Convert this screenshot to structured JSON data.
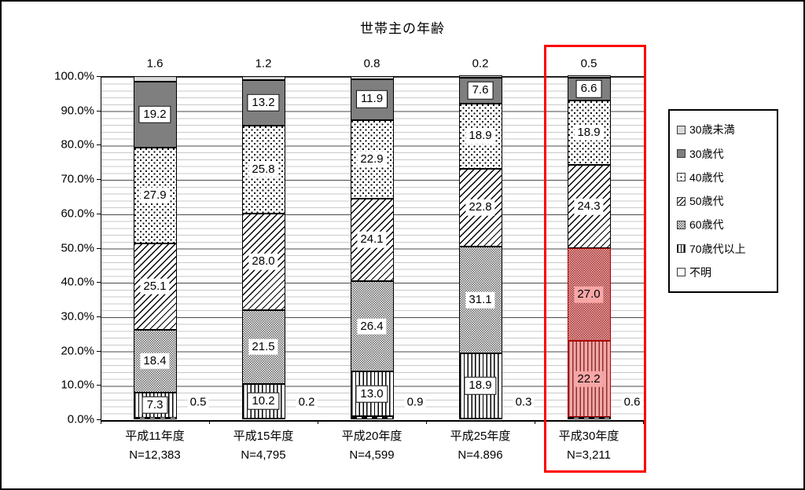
{
  "title": "世帯主の年齢",
  "colors": {
    "highlight_border": "#ff0000",
    "highlight_pattern": "#9c3535",
    "highlight_fill": "#f5b0b0",
    "highlight_label_fill": "#f8a6a6",
    "series_30s_fill": "#7f7f7f",
    "series_under30_fill": "#d9d9d9",
    "gridline_major": "#4a4a4a",
    "gridline_minor": "#c9c9c9"
  },
  "legend": {
    "items": [
      {
        "label": "30歳未満"
      },
      {
        "label": "30歳代"
      },
      {
        "label": "40歳代"
      },
      {
        "label": "50歳代"
      },
      {
        "label": "60歳代"
      },
      {
        "label": "70歳代以上"
      },
      {
        "label": "不明"
      }
    ]
  },
  "y_axis": {
    "tick_labels": [
      "100.0%",
      "90.0%",
      "80.0%",
      "70.0%",
      "60.0%",
      "50.0%",
      "40.0%",
      "30.0%",
      "20.0%",
      "10.0%",
      "0.0%"
    ]
  },
  "chart_data": {
    "type": "bar",
    "stacked": true,
    "orientation": "vertical",
    "title": "世帯主の年齢",
    "ylim": [
      0,
      100
    ],
    "y_major_step": 10,
    "y_minor_step": 2,
    "grid": true,
    "legend_position": "right",
    "categories": [
      {
        "label": "平成11年度",
        "n_label": "N=12,383"
      },
      {
        "label": "平成15年度",
        "n_label": "N=4,795"
      },
      {
        "label": "平成20年度",
        "n_label": "N=4,599"
      },
      {
        "label": "平成25年度",
        "n_label": "N=4.896"
      },
      {
        "label": "平成30年度",
        "n_label": "N=3,211"
      }
    ],
    "series": [
      {
        "name": "30歳未満",
        "values": [
          1.6,
          1.2,
          0.8,
          0.2,
          0.5
        ],
        "label_placement": "above-bar"
      },
      {
        "name": "30歳代",
        "values": [
          19.2,
          13.2,
          11.9,
          7.6,
          6.6
        ],
        "label_placement": "inside"
      },
      {
        "name": "40歳代",
        "values": [
          27.9,
          25.8,
          22.9,
          18.9,
          18.9
        ],
        "label_placement": "inside"
      },
      {
        "name": "50歳代",
        "values": [
          25.1,
          28.0,
          24.1,
          22.8,
          24.3
        ],
        "label_placement": "inside"
      },
      {
        "name": "60歳代",
        "values": [
          18.4,
          21.5,
          26.4,
          31.1,
          27.0
        ],
        "label_placement": "inside"
      },
      {
        "name": "70歳代以上",
        "values": [
          7.3,
          10.2,
          13.0,
          18.9,
          22.2
        ],
        "label_placement": "inside"
      },
      {
        "name": "不明",
        "values": [
          0.5,
          0.2,
          0.9,
          0.3,
          0.6
        ],
        "label_placement": "right-of-bar"
      }
    ],
    "highlighted_category_index": 4,
    "highlighted_series_names": [
      "60歳代",
      "70歳代以上"
    ]
  }
}
